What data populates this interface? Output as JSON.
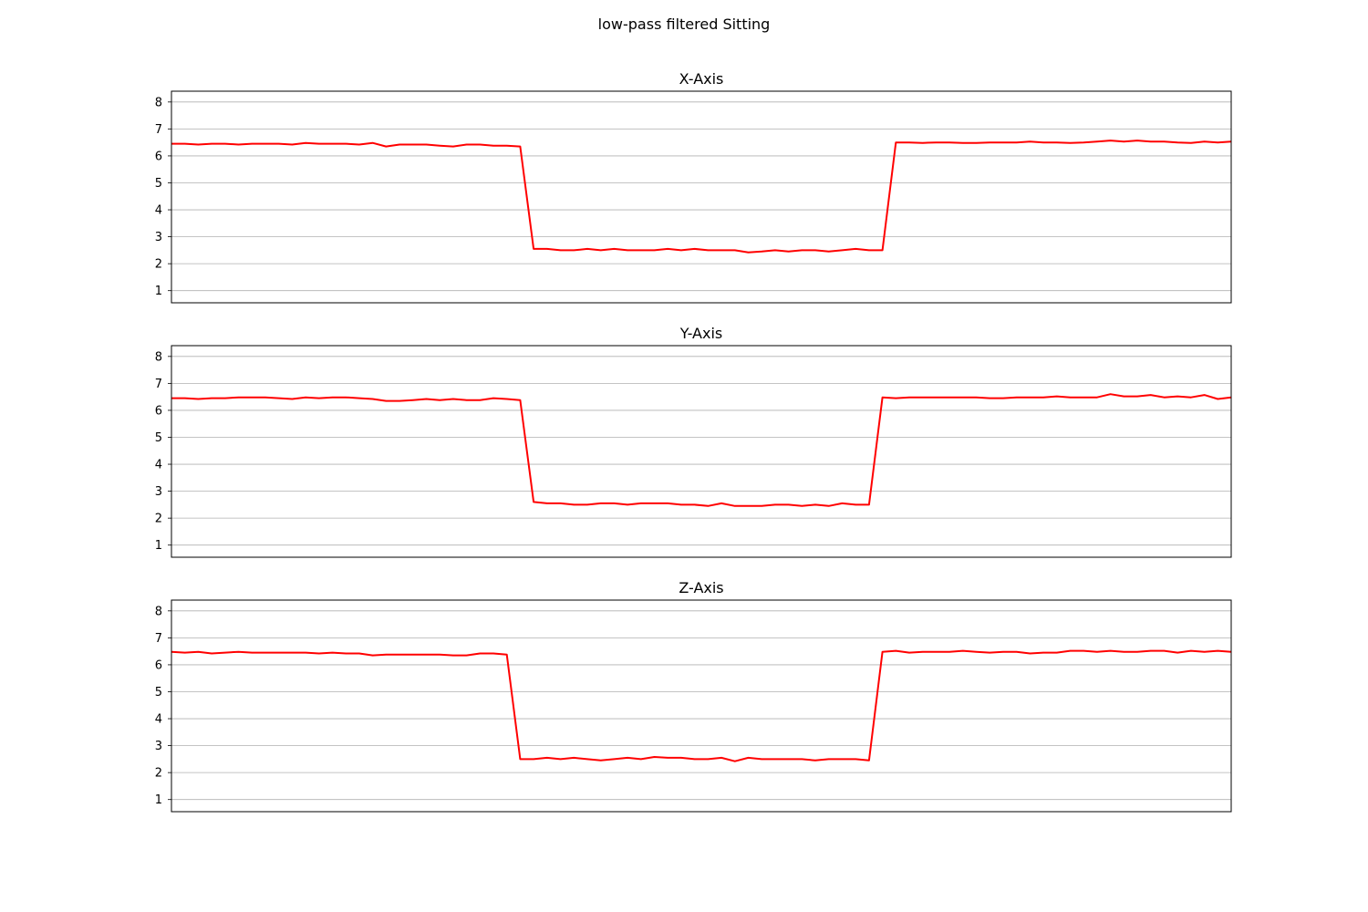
{
  "figure_title": "low-pass filtered Sitting",
  "chart_data": [
    {
      "type": "line",
      "title": "X-Axis",
      "xlabel": "",
      "ylabel": "",
      "ylim": [
        0.55,
        8.4
      ],
      "yticks": [
        1,
        2,
        3,
        4,
        5,
        6,
        7,
        8
      ],
      "grid": "horizontal",
      "line_color": "#ff0000",
      "x_tick_labels_shown": false,
      "series": [
        {
          "x": [
            0,
            1,
            2,
            3,
            4,
            5,
            6,
            7,
            8,
            9,
            10,
            11,
            12,
            13,
            14,
            15,
            16,
            17,
            18,
            19,
            20,
            21,
            22,
            23,
            24,
            25,
            26,
            27,
            28,
            29,
            30,
            31,
            32,
            33,
            34,
            35,
            36,
            37,
            38,
            39,
            40,
            41,
            42,
            43,
            44,
            45,
            46,
            47,
            48,
            49,
            50,
            51,
            52,
            53,
            54,
            55,
            56,
            57,
            58,
            59,
            60,
            61,
            62,
            63,
            64,
            65,
            66,
            67,
            68,
            69,
            70,
            71,
            72,
            73,
            74,
            75,
            76,
            77,
            78,
            79
          ],
          "values": [
            6.45,
            6.45,
            6.42,
            6.45,
            6.45,
            6.42,
            6.45,
            6.45,
            6.45,
            6.42,
            6.48,
            6.45,
            6.45,
            6.45,
            6.42,
            6.48,
            6.35,
            6.42,
            6.42,
            6.42,
            6.38,
            6.35,
            6.42,
            6.42,
            6.38,
            6.38,
            6.35,
            2.55,
            2.55,
            2.5,
            2.5,
            2.55,
            2.5,
            2.55,
            2.5,
            2.5,
            2.5,
            2.55,
            2.5,
            2.55,
            2.5,
            2.5,
            2.5,
            2.42,
            2.45,
            2.5,
            2.45,
            2.5,
            2.5,
            2.45,
            2.5,
            2.55,
            2.5,
            2.5,
            6.5,
            6.5,
            6.48,
            6.5,
            6.5,
            6.48,
            6.48,
            6.5,
            6.5,
            6.5,
            6.53,
            6.5,
            6.5,
            6.48,
            6.5,
            6.53,
            6.57,
            6.53,
            6.57,
            6.53,
            6.53,
            6.5,
            6.48,
            6.53,
            6.5,
            6.53
          ]
        }
      ]
    },
    {
      "type": "line",
      "title": "Y-Axis",
      "xlabel": "",
      "ylabel": "",
      "ylim": [
        0.55,
        8.4
      ],
      "yticks": [
        1,
        2,
        3,
        4,
        5,
        6,
        7,
        8
      ],
      "grid": "horizontal",
      "line_color": "#ff0000",
      "x_tick_labels_shown": false,
      "series": [
        {
          "x": [
            0,
            1,
            2,
            3,
            4,
            5,
            6,
            7,
            8,
            9,
            10,
            11,
            12,
            13,
            14,
            15,
            16,
            17,
            18,
            19,
            20,
            21,
            22,
            23,
            24,
            25,
            26,
            27,
            28,
            29,
            30,
            31,
            32,
            33,
            34,
            35,
            36,
            37,
            38,
            39,
            40,
            41,
            42,
            43,
            44,
            45,
            46,
            47,
            48,
            49,
            50,
            51,
            52,
            53,
            54,
            55,
            56,
            57,
            58,
            59,
            60,
            61,
            62,
            63,
            64,
            65,
            66,
            67,
            68,
            69,
            70,
            71,
            72,
            73,
            74,
            75,
            76,
            77,
            78,
            79
          ],
          "values": [
            6.45,
            6.45,
            6.42,
            6.45,
            6.45,
            6.48,
            6.48,
            6.48,
            6.45,
            6.42,
            6.48,
            6.45,
            6.48,
            6.48,
            6.45,
            6.42,
            6.35,
            6.35,
            6.38,
            6.42,
            6.38,
            6.42,
            6.38,
            6.38,
            6.45,
            6.42,
            6.38,
            2.6,
            2.55,
            2.55,
            2.5,
            2.5,
            2.55,
            2.55,
            2.5,
            2.55,
            2.55,
            2.55,
            2.5,
            2.5,
            2.45,
            2.55,
            2.45,
            2.45,
            2.45,
            2.5,
            2.5,
            2.45,
            2.5,
            2.45,
            2.55,
            2.5,
            2.5,
            6.48,
            6.45,
            6.48,
            6.48,
            6.48,
            6.48,
            6.48,
            6.48,
            6.45,
            6.45,
            6.48,
            6.48,
            6.48,
            6.52,
            6.48,
            6.48,
            6.48,
            6.6,
            6.52,
            6.52,
            6.57,
            6.48,
            6.52,
            6.48,
            6.57,
            6.42,
            6.48
          ]
        }
      ]
    },
    {
      "type": "line",
      "title": "Z-Axis",
      "xlabel": "",
      "ylabel": "",
      "ylim": [
        0.55,
        8.4
      ],
      "yticks": [
        1,
        2,
        3,
        4,
        5,
        6,
        7,
        8
      ],
      "grid": "horizontal",
      "line_color": "#ff0000",
      "x_tick_labels_shown": false,
      "series": [
        {
          "x": [
            0,
            1,
            2,
            3,
            4,
            5,
            6,
            7,
            8,
            9,
            10,
            11,
            12,
            13,
            14,
            15,
            16,
            17,
            18,
            19,
            20,
            21,
            22,
            23,
            24,
            25,
            26,
            27,
            28,
            29,
            30,
            31,
            32,
            33,
            34,
            35,
            36,
            37,
            38,
            39,
            40,
            41,
            42,
            43,
            44,
            45,
            46,
            47,
            48,
            49,
            50,
            51,
            52,
            53,
            54,
            55,
            56,
            57,
            58,
            59,
            60,
            61,
            62,
            63,
            64,
            65,
            66,
            67,
            68,
            69,
            70,
            71,
            72,
            73,
            74,
            75,
            76,
            77,
            78,
            79
          ],
          "values": [
            6.48,
            6.45,
            6.48,
            6.42,
            6.45,
            6.48,
            6.45,
            6.45,
            6.45,
            6.45,
            6.45,
            6.42,
            6.45,
            6.42,
            6.42,
            6.35,
            6.38,
            6.38,
            6.38,
            6.38,
            6.38,
            6.35,
            6.35,
            6.42,
            6.42,
            6.38,
            2.5,
            2.5,
            2.55,
            2.5,
            2.55,
            2.5,
            2.45,
            2.5,
            2.55,
            2.5,
            2.58,
            2.55,
            2.55,
            2.5,
            2.5,
            2.55,
            2.42,
            2.55,
            2.5,
            2.5,
            2.5,
            2.5,
            2.45,
            2.5,
            2.5,
            2.5,
            2.45,
            6.48,
            6.52,
            6.45,
            6.48,
            6.48,
            6.48,
            6.52,
            6.48,
            6.45,
            6.48,
            6.48,
            6.42,
            6.45,
            6.45,
            6.52,
            6.52,
            6.48,
            6.52,
            6.48,
            6.48,
            6.52,
            6.52,
            6.45,
            6.52,
            6.48,
            6.52,
            6.48
          ]
        }
      ]
    }
  ]
}
